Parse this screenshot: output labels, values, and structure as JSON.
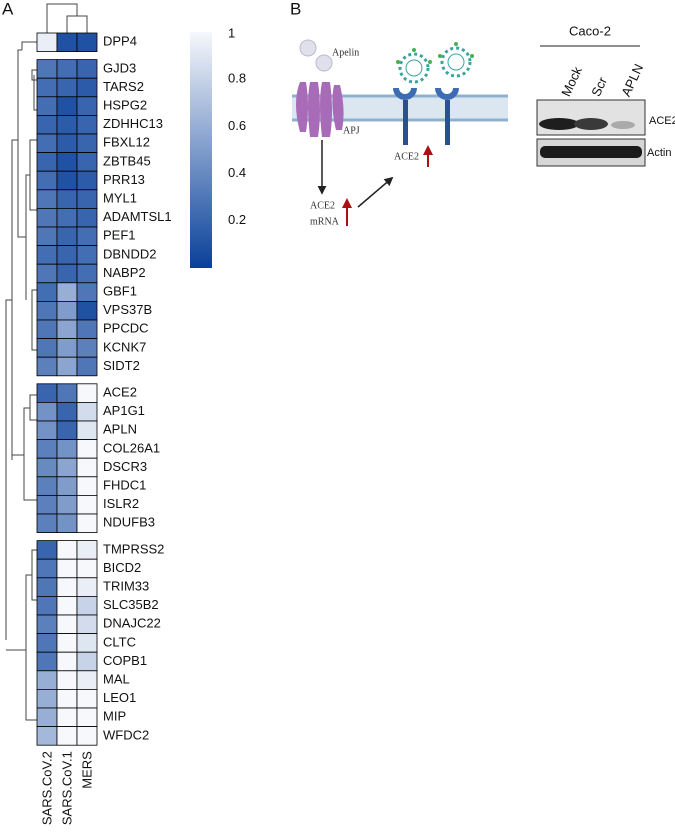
{
  "panel_labels": [
    "A",
    "B"
  ],
  "chart_data": {
    "type": "heatmap",
    "columns": [
      "SARS.CoV.2",
      "SARS.CoV.1",
      "MERS"
    ],
    "row_groups": [
      {
        "rows": [
          "DPP4"
        ],
        "values": [
          [
            0.95,
            0.1,
            0.1
          ]
        ]
      },
      {
        "rows": [
          "GJD3",
          "TARS2",
          "HSPG2",
          "ZDHHC13",
          "FBXL12",
          "ZBTB45",
          "PRR13",
          "MYL1",
          "ADAMTSL1",
          "PEF1",
          "DBNDD2",
          "NABP2",
          "GBF1",
          "VPS37B",
          "PPCDC",
          "KCNK7",
          "SIDT2"
        ],
        "values": [
          [
            0.3,
            0.25,
            0.2
          ],
          [
            0.25,
            0.2,
            0.15
          ],
          [
            0.25,
            0.1,
            0.2
          ],
          [
            0.2,
            0.15,
            0.2
          ],
          [
            0.25,
            0.15,
            0.2
          ],
          [
            0.2,
            0.1,
            0.2
          ],
          [
            0.25,
            0.1,
            0.15
          ],
          [
            0.3,
            0.2,
            0.2
          ],
          [
            0.3,
            0.25,
            0.2
          ],
          [
            0.3,
            0.2,
            0.25
          ],
          [
            0.25,
            0.2,
            0.25
          ],
          [
            0.3,
            0.2,
            0.25
          ],
          [
            0.25,
            0.6,
            0.3
          ],
          [
            0.3,
            0.5,
            0.1
          ],
          [
            0.3,
            0.55,
            0.3
          ],
          [
            0.3,
            0.5,
            0.35
          ],
          [
            0.35,
            0.55,
            0.3
          ]
        ]
      },
      {
        "rows": [
          "ACE2",
          "AP1G1",
          "APLN",
          "COL26A1",
          "DSCR3",
          "FHDC1",
          "ISLR2",
          "NDUFB3"
        ],
        "values": [
          [
            0.2,
            0.3,
            1
          ],
          [
            0.45,
            0.2,
            0.85
          ],
          [
            0.45,
            0.2,
            0.9
          ],
          [
            0.35,
            0.45,
            1
          ],
          [
            0.4,
            0.55,
            1
          ],
          [
            0.35,
            0.5,
            1
          ],
          [
            0.35,
            0.5,
            1
          ],
          [
            0.35,
            0.45,
            1
          ]
        ]
      },
      {
        "rows": [
          "TMPRSS2",
          "BICD2",
          "TRIM33",
          "SLC35B2",
          "DNAJC22",
          "CLTC",
          "COPB1",
          "MAL",
          "LEO1",
          "MIP",
          "WFDC2"
        ],
        "values": [
          [
            0.2,
            1,
            0.95
          ],
          [
            0.3,
            1,
            1
          ],
          [
            0.3,
            1,
            0.95
          ],
          [
            0.3,
            1,
            0.8
          ],
          [
            0.35,
            1,
            0.85
          ],
          [
            0.3,
            1,
            0.9
          ],
          [
            0.3,
            1,
            0.8
          ],
          [
            0.6,
            1,
            0.95
          ],
          [
            0.6,
            1,
            1
          ],
          [
            0.6,
            1,
            1
          ],
          [
            0.65,
            1,
            1
          ]
        ]
      }
    ],
    "clim": [
      0,
      1
    ],
    "cticks": [
      0.2,
      0.4,
      0.6,
      0.8,
      1
    ],
    "colormap": [
      "#08409a",
      "#f6f8fc"
    ]
  },
  "diagram": {
    "ligand": "Apelin",
    "receptor": "APJ",
    "mrna": [
      "ACE2",
      "mRNA"
    ],
    "protein": "ACE2"
  },
  "blot": {
    "cell_line": "Caco-2",
    "lanes": [
      "Mock",
      "Scr",
      "APLN"
    ],
    "bands": [
      "ACE2",
      "Actin"
    ]
  }
}
